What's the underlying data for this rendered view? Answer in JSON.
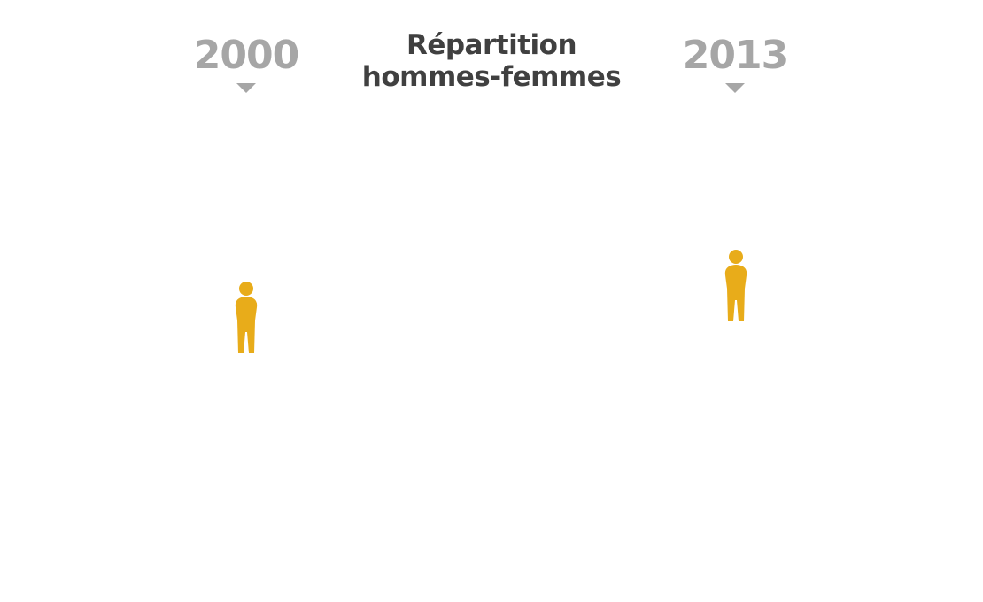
{
  "header": {
    "title_line1": "Répartition",
    "title_line2": "hommes-femmes"
  },
  "years": {
    "left": "2000",
    "right": "2013"
  },
  "icons": {
    "person": "person-icon",
    "caret": "caret-down-icon"
  },
  "colors": {
    "year_gray": "#a6a6a6",
    "title_dark": "#404040",
    "person_gold": "#e8ac1a"
  }
}
